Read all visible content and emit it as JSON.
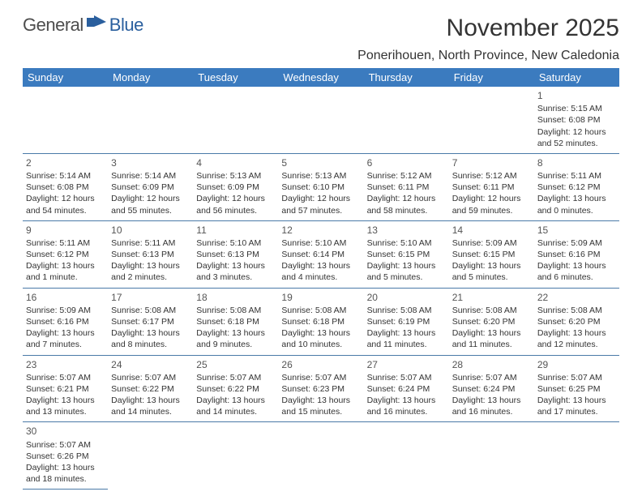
{
  "header": {
    "logo_part1": "General",
    "logo_part2": "Blue",
    "month_title": "November 2025",
    "location": "Ponerihouen, North Province, New Caledonia"
  },
  "colors": {
    "header_bg": "#3b7bbf",
    "header_text": "#ffffff",
    "cell_border": "#4a7aa8",
    "body_text": "#333333",
    "daynum": "#555555",
    "logo_gray": "#4d4d4d",
    "logo_blue": "#2a5f9e"
  },
  "day_headers": [
    "Sunday",
    "Monday",
    "Tuesday",
    "Wednesday",
    "Thursday",
    "Friday",
    "Saturday"
  ],
  "weeks": [
    [
      null,
      null,
      null,
      null,
      null,
      null,
      {
        "n": "1",
        "sr": "Sunrise: 5:15 AM",
        "ss": "Sunset: 6:08 PM",
        "dl": "Daylight: 12 hours and 52 minutes."
      }
    ],
    [
      {
        "n": "2",
        "sr": "Sunrise: 5:14 AM",
        "ss": "Sunset: 6:08 PM",
        "dl": "Daylight: 12 hours and 54 minutes."
      },
      {
        "n": "3",
        "sr": "Sunrise: 5:14 AM",
        "ss": "Sunset: 6:09 PM",
        "dl": "Daylight: 12 hours and 55 minutes."
      },
      {
        "n": "4",
        "sr": "Sunrise: 5:13 AM",
        "ss": "Sunset: 6:09 PM",
        "dl": "Daylight: 12 hours and 56 minutes."
      },
      {
        "n": "5",
        "sr": "Sunrise: 5:13 AM",
        "ss": "Sunset: 6:10 PM",
        "dl": "Daylight: 12 hours and 57 minutes."
      },
      {
        "n": "6",
        "sr": "Sunrise: 5:12 AM",
        "ss": "Sunset: 6:11 PM",
        "dl": "Daylight: 12 hours and 58 minutes."
      },
      {
        "n": "7",
        "sr": "Sunrise: 5:12 AM",
        "ss": "Sunset: 6:11 PM",
        "dl": "Daylight: 12 hours and 59 minutes."
      },
      {
        "n": "8",
        "sr": "Sunrise: 5:11 AM",
        "ss": "Sunset: 6:12 PM",
        "dl": "Daylight: 13 hours and 0 minutes."
      }
    ],
    [
      {
        "n": "9",
        "sr": "Sunrise: 5:11 AM",
        "ss": "Sunset: 6:12 PM",
        "dl": "Daylight: 13 hours and 1 minute."
      },
      {
        "n": "10",
        "sr": "Sunrise: 5:11 AM",
        "ss": "Sunset: 6:13 PM",
        "dl": "Daylight: 13 hours and 2 minutes."
      },
      {
        "n": "11",
        "sr": "Sunrise: 5:10 AM",
        "ss": "Sunset: 6:13 PM",
        "dl": "Daylight: 13 hours and 3 minutes."
      },
      {
        "n": "12",
        "sr": "Sunrise: 5:10 AM",
        "ss": "Sunset: 6:14 PM",
        "dl": "Daylight: 13 hours and 4 minutes."
      },
      {
        "n": "13",
        "sr": "Sunrise: 5:10 AM",
        "ss": "Sunset: 6:15 PM",
        "dl": "Daylight: 13 hours and 5 minutes."
      },
      {
        "n": "14",
        "sr": "Sunrise: 5:09 AM",
        "ss": "Sunset: 6:15 PM",
        "dl": "Daylight: 13 hours and 5 minutes."
      },
      {
        "n": "15",
        "sr": "Sunrise: 5:09 AM",
        "ss": "Sunset: 6:16 PM",
        "dl": "Daylight: 13 hours and 6 minutes."
      }
    ],
    [
      {
        "n": "16",
        "sr": "Sunrise: 5:09 AM",
        "ss": "Sunset: 6:16 PM",
        "dl": "Daylight: 13 hours and 7 minutes."
      },
      {
        "n": "17",
        "sr": "Sunrise: 5:08 AM",
        "ss": "Sunset: 6:17 PM",
        "dl": "Daylight: 13 hours and 8 minutes."
      },
      {
        "n": "18",
        "sr": "Sunrise: 5:08 AM",
        "ss": "Sunset: 6:18 PM",
        "dl": "Daylight: 13 hours and 9 minutes."
      },
      {
        "n": "19",
        "sr": "Sunrise: 5:08 AM",
        "ss": "Sunset: 6:18 PM",
        "dl": "Daylight: 13 hours and 10 minutes."
      },
      {
        "n": "20",
        "sr": "Sunrise: 5:08 AM",
        "ss": "Sunset: 6:19 PM",
        "dl": "Daylight: 13 hours and 11 minutes."
      },
      {
        "n": "21",
        "sr": "Sunrise: 5:08 AM",
        "ss": "Sunset: 6:20 PM",
        "dl": "Daylight: 13 hours and 11 minutes."
      },
      {
        "n": "22",
        "sr": "Sunrise: 5:08 AM",
        "ss": "Sunset: 6:20 PM",
        "dl": "Daylight: 13 hours and 12 minutes."
      }
    ],
    [
      {
        "n": "23",
        "sr": "Sunrise: 5:07 AM",
        "ss": "Sunset: 6:21 PM",
        "dl": "Daylight: 13 hours and 13 minutes."
      },
      {
        "n": "24",
        "sr": "Sunrise: 5:07 AM",
        "ss": "Sunset: 6:22 PM",
        "dl": "Daylight: 13 hours and 14 minutes."
      },
      {
        "n": "25",
        "sr": "Sunrise: 5:07 AM",
        "ss": "Sunset: 6:22 PM",
        "dl": "Daylight: 13 hours and 14 minutes."
      },
      {
        "n": "26",
        "sr": "Sunrise: 5:07 AM",
        "ss": "Sunset: 6:23 PM",
        "dl": "Daylight: 13 hours and 15 minutes."
      },
      {
        "n": "27",
        "sr": "Sunrise: 5:07 AM",
        "ss": "Sunset: 6:24 PM",
        "dl": "Daylight: 13 hours and 16 minutes."
      },
      {
        "n": "28",
        "sr": "Sunrise: 5:07 AM",
        "ss": "Sunset: 6:24 PM",
        "dl": "Daylight: 13 hours and 16 minutes."
      },
      {
        "n": "29",
        "sr": "Sunrise: 5:07 AM",
        "ss": "Sunset: 6:25 PM",
        "dl": "Daylight: 13 hours and 17 minutes."
      }
    ],
    [
      {
        "n": "30",
        "sr": "Sunrise: 5:07 AM",
        "ss": "Sunset: 6:26 PM",
        "dl": "Daylight: 13 hours and 18 minutes."
      },
      null,
      null,
      null,
      null,
      null,
      null
    ]
  ]
}
